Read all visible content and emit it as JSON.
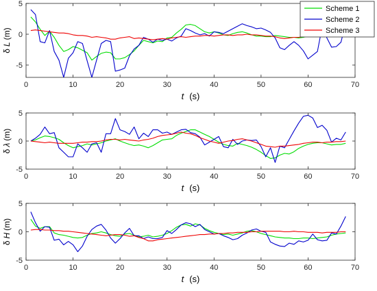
{
  "chart_data": [
    {
      "type": "line",
      "ylabel_prefix": "δ",
      "ylabel_symbol": "L",
      "ylabel_unit": "(m)",
      "xlabel_var": "t",
      "xlabel_unit": "(s)",
      "xlim": [
        0,
        70
      ],
      "ylim": [
        -7,
        5
      ],
      "xticks": [
        0,
        10,
        20,
        30,
        40,
        50,
        60,
        70
      ],
      "yticks": [
        -5,
        0,
        5
      ],
      "grid": false,
      "x": [
        1,
        2,
        3,
        4,
        5,
        6,
        7,
        8,
        9,
        10,
        11,
        12,
        13,
        14,
        15,
        16,
        17,
        18,
        19,
        20,
        21,
        22,
        23,
        24,
        25,
        26,
        27,
        28,
        29,
        30,
        31,
        32,
        33,
        34,
        35,
        36,
        37,
        38,
        39,
        40,
        41,
        42,
        43,
        44,
        45,
        46,
        47,
        48,
        49,
        50,
        51,
        52,
        53,
        54,
        55,
        56,
        57,
        58,
        59,
        60,
        61,
        62,
        63,
        64,
        65,
        66,
        67,
        68
      ],
      "series": [
        {
          "name": "Scheme 1",
          "color": "#00dd00",
          "values": [
            2.8,
            2.0,
            0.8,
            -0.2,
            0.5,
            -0.5,
            -1.8,
            -2.8,
            -2.5,
            -2.0,
            -2.2,
            -2.6,
            -3.0,
            -4.2,
            -3.6,
            -3.1,
            -2.9,
            -3.0,
            -4.0,
            -4.0,
            -3.8,
            -3.3,
            -2.7,
            -1.8,
            -1.0,
            -1.2,
            -1.4,
            -1.1,
            -1.2,
            -0.6,
            -0.5,
            0.2,
            0.8,
            1.5,
            1.6,
            1.4,
            0.9,
            0.4,
            0.2,
            0.4,
            0.2,
            -0.1,
            -0.2,
            0.1,
            0.3,
            0.4,
            0.2,
            -0.1,
            -0.3,
            -0.3,
            -0.4,
            -0.4,
            -0.2,
            -0.3,
            -0.4,
            -0.5,
            -0.5,
            -0.6,
            -0.5,
            -0.3,
            -0.2,
            -0.1,
            0.6,
            0.9,
            1.0,
            1.0,
            1.3,
            2.0
          ]
        },
        {
          "name": "Scheme 2",
          "color": "#0000cc",
          "values": [
            4.0,
            3.2,
            -1.2,
            -1.4,
            0.6,
            -2.8,
            -4.2,
            -7.0,
            -3.9,
            -3.0,
            -1.2,
            -1.5,
            -4.3,
            -7.0,
            -4.2,
            -1.5,
            -1.0,
            -1.2,
            -6.0,
            -5.8,
            -5.5,
            -3.5,
            -2.4,
            -1.8,
            -0.5,
            -0.8,
            -1.3,
            -0.8,
            -1.0,
            -0.8,
            -1.1,
            -0.6,
            -0.3,
            0.9,
            0.6,
            0.2,
            -0.1,
            0.1,
            -0.3,
            0.4,
            0.3,
            0.1,
            0.5,
            0.9,
            1.3,
            1.7,
            1.4,
            1.2,
            0.9,
            1.0,
            0.7,
            0.3,
            -0.6,
            -2.2,
            -2.5,
            -1.8,
            -1.2,
            -1.8,
            -2.7,
            -4.0,
            -3.4,
            -2.8,
            1.2,
            -0.6,
            -2.1,
            -2.0,
            -1.3,
            1.8
          ]
        },
        {
          "name": "Scheme 3",
          "color": "#ee0000",
          "values": [
            0.6,
            0.7,
            0.6,
            0.5,
            0.4,
            0.3,
            0.2,
            0.2,
            0.1,
            -0.1,
            -0.2,
            -0.2,
            -0.3,
            -0.5,
            -0.4,
            -0.5,
            -0.6,
            -0.8,
            -0.8,
            -0.6,
            -0.5,
            -0.4,
            -0.7,
            -0.6,
            -0.7,
            -0.8,
            -0.9,
            -0.8,
            -0.7,
            -0.8,
            -0.6,
            -0.5,
            -0.4,
            -0.5,
            -0.4,
            -0.3,
            -0.3,
            -0.2,
            -0.2,
            -0.3,
            -0.2,
            -0.1,
            -0.1,
            -0.2,
            -0.1,
            -0.1,
            0.0,
            -0.1,
            -0.1,
            -0.2,
            -0.3,
            -0.3,
            -0.4,
            -0.6,
            -0.7,
            -0.6,
            -0.5,
            -0.5,
            -0.4,
            -0.3,
            -0.3,
            -0.2,
            -0.3,
            -0.2,
            -0.1,
            0.0,
            0.1,
            0.2
          ]
        }
      ]
    },
    {
      "type": "line",
      "ylabel_prefix": "δ",
      "ylabel_symbol": "λ",
      "ylabel_unit": "(m)",
      "xlabel_var": "t",
      "xlabel_unit": "(s)",
      "xlim": [
        0,
        70
      ],
      "ylim": [
        -5,
        5
      ],
      "xticks": [
        0,
        10,
        20,
        30,
        40,
        50,
        60,
        70
      ],
      "yticks": [
        -5,
        0,
        5
      ],
      "grid": false,
      "x": [
        1,
        2,
        3,
        4,
        5,
        6,
        7,
        8,
        9,
        10,
        11,
        12,
        13,
        14,
        15,
        16,
        17,
        18,
        19,
        20,
        21,
        22,
        23,
        24,
        25,
        26,
        27,
        28,
        29,
        30,
        31,
        32,
        33,
        34,
        35,
        36,
        37,
        38,
        39,
        40,
        41,
        42,
        43,
        44,
        45,
        46,
        47,
        48,
        49,
        50,
        51,
        52,
        53,
        54,
        55,
        56,
        57,
        58,
        59,
        60,
        61,
        62,
        63,
        64,
        65,
        66,
        67,
        68
      ],
      "series": [
        {
          "name": "Scheme 1",
          "color": "#00dd00",
          "values": [
            0.0,
            0.2,
            0.6,
            0.9,
            0.8,
            0.6,
            0.3,
            -0.3,
            -0.8,
            -1.2,
            -1.0,
            -0.8,
            -0.5,
            -0.7,
            -0.5,
            -0.3,
            0.0,
            0.2,
            0.4,
            0.0,
            -0.3,
            -0.6,
            -0.8,
            -0.7,
            -0.9,
            -1.2,
            -0.8,
            -0.3,
            0.2,
            0.3,
            0.4,
            1.0,
            1.4,
            1.7,
            2.0,
            2.0,
            1.6,
            1.2,
            0.8,
            0.3,
            -0.2,
            -0.6,
            -0.8,
            -0.9,
            -0.4,
            -0.6,
            -0.8,
            -1.1,
            -1.5,
            -2.0,
            -2.6,
            -3.1,
            -3.0,
            -2.5,
            -2.2,
            -2.3,
            -1.9,
            -1.3,
            -0.9,
            -0.6,
            -0.4,
            -0.3,
            -0.3,
            -0.5,
            -0.7,
            -0.6,
            -0.6,
            -0.4
          ]
        },
        {
          "name": "Scheme 2",
          "color": "#0000cc",
          "values": [
            0.0,
            0.5,
            1.2,
            2.5,
            1.3,
            1.5,
            -1.2,
            -2.0,
            -2.8,
            -2.8,
            -0.5,
            -1.2,
            -2.0,
            -0.5,
            -0.3,
            -2.0,
            1.3,
            1.3,
            4.0,
            2.0,
            1.7,
            1.2,
            2.5,
            0.4,
            1.4,
            0.8,
            2.0,
            2.0,
            1.4,
            1.6,
            1.2,
            1.6,
            2.0,
            2.1,
            1.5,
            1.3,
            0.7,
            -0.7,
            -0.2,
            0.3,
            0.8,
            -1.0,
            -1.2,
            0.3,
            -0.6,
            0.0,
            0.2,
            0.1,
            0.2,
            -1.0,
            -2.8,
            -1.2,
            -3.8,
            -0.9,
            -1.2,
            0.3,
            1.8,
            3.2,
            4.4,
            4.6,
            4.1,
            2.4,
            2.8,
            1.9,
            -0.2,
            0.5,
            0.2,
            1.6
          ]
        },
        {
          "name": "Scheme 3",
          "color": "#ee0000",
          "values": [
            0.0,
            -0.1,
            -0.2,
            -0.3,
            -0.2,
            -0.3,
            -0.4,
            -0.4,
            -0.4,
            -0.4,
            -0.3,
            -0.2,
            -0.2,
            -0.1,
            -0.1,
            0.0,
            0.2,
            0.3,
            0.3,
            0.2,
            0.3,
            0.2,
            0.1,
            0.0,
            0.2,
            0.3,
            0.5,
            0.8,
            1.0,
            1.1,
            1.2,
            1.4,
            1.6,
            1.4,
            1.3,
            1.0,
            0.6,
            0.3,
            0.0,
            -0.2,
            -0.4,
            -0.2,
            0.0,
            0.1,
            0.3,
            0.4,
            0.2,
            0.0,
            -0.3,
            -0.6,
            -0.9,
            -1.0,
            -1.1,
            -0.9,
            -0.9,
            -0.8,
            -0.7,
            -0.6,
            -0.4,
            -0.3,
            -0.2,
            -0.2,
            -0.3,
            -0.2,
            -0.2,
            -0.1,
            -0.1,
            0.0
          ]
        }
      ]
    },
    {
      "type": "line",
      "ylabel_prefix": "δ",
      "ylabel_symbol": "H",
      "ylabel_unit": "(m)",
      "xlabel_var": "t",
      "xlabel_unit": "(s)",
      "xlim": [
        0,
        70
      ],
      "ylim": [
        -5,
        5
      ],
      "xticks": [
        0,
        10,
        20,
        30,
        40,
        50,
        60,
        70
      ],
      "yticks": [
        -5,
        0,
        5
      ],
      "grid": false,
      "x": [
        1,
        2,
        3,
        4,
        5,
        6,
        7,
        8,
        9,
        10,
        11,
        12,
        13,
        14,
        15,
        16,
        17,
        18,
        19,
        20,
        21,
        22,
        23,
        24,
        25,
        26,
        27,
        28,
        29,
        30,
        31,
        32,
        33,
        34,
        35,
        36,
        37,
        38,
        39,
        40,
        41,
        42,
        43,
        44,
        45,
        46,
        47,
        48,
        49,
        50,
        51,
        52,
        53,
        54,
        55,
        56,
        57,
        58,
        59,
        60,
        61,
        62,
        63,
        64,
        65,
        66,
        67,
        68
      ],
      "series": [
        {
          "name": "Scheme 1",
          "color": "#00dd00",
          "values": [
            2.2,
            1.0,
            0.6,
            0.9,
            0.9,
            -0.2,
            -0.5,
            -0.6,
            -0.8,
            -1.0,
            -1.1,
            -1.0,
            -0.6,
            -0.3,
            -0.2,
            0.0,
            -0.2,
            -0.5,
            -0.7,
            -0.8,
            -0.4,
            -0.3,
            -0.6,
            -0.9,
            -0.8,
            -0.6,
            -0.9,
            -0.8,
            -0.6,
            -0.3,
            0.2,
            0.8,
            1.2,
            1.3,
            1.0,
            1.4,
            1.2,
            0.6,
            0.2,
            -0.1,
            -0.3,
            -0.5,
            -0.4,
            -0.6,
            -0.4,
            -0.2,
            0.1,
            0.2,
            0.0,
            -0.3,
            -0.5,
            -0.7,
            -0.9,
            -1.0,
            -1.1,
            -1.1,
            -1.2,
            -1.2,
            -1.1,
            -1.1,
            -1.2,
            -1.1,
            -1.0,
            -0.9,
            -0.6,
            -0.4,
            -0.3,
            -0.2
          ]
        },
        {
          "name": "Scheme 2",
          "color": "#0000cc",
          "values": [
            3.5,
            1.6,
            0.1,
            0.9,
            0.8,
            -1.5,
            -1.3,
            -2.3,
            -1.7,
            -2.3,
            -3.5,
            -2.5,
            -0.8,
            0.4,
            1.0,
            1.3,
            0.3,
            -1.1,
            -2.0,
            -1.2,
            -0.2,
            0.6,
            -0.7,
            -0.7,
            -1.2,
            -0.9,
            -1.2,
            -1.2,
            -1.0,
            0.2,
            -0.3,
            0.4,
            1.2,
            1.6,
            1.4,
            0.9,
            1.3,
            0.4,
            0.0,
            -0.4,
            -0.3,
            -0.7,
            -1.0,
            -1.4,
            -1.2,
            -0.6,
            -0.2,
            0.3,
            0.5,
            0.1,
            -0.1,
            -1.8,
            -2.2,
            -2.5,
            -2.6,
            -2.0,
            -2.2,
            -1.6,
            -1.8,
            -1.5,
            -0.4,
            -1.4,
            -1.6,
            -1.5,
            -0.2,
            -0.4,
            1.0,
            2.7
          ]
        },
        {
          "name": "Scheme 3",
          "color": "#ee0000",
          "values": [
            0.3,
            0.4,
            0.4,
            0.3,
            0.3,
            0.2,
            0.2,
            0.1,
            0.1,
            0.0,
            -0.1,
            -0.2,
            -0.3,
            -0.4,
            -0.5,
            -0.6,
            -0.7,
            -0.6,
            -0.5,
            -0.5,
            -0.6,
            -0.8,
            -0.7,
            -1.0,
            -1.2,
            -1.6,
            -1.6,
            -1.4,
            -1.3,
            -1.2,
            -1.1,
            -1.0,
            -0.9,
            -0.8,
            -0.7,
            -0.6,
            -0.5,
            -0.5,
            -0.4,
            -0.4,
            -0.3,
            -0.3,
            -0.2,
            -0.2,
            -0.1,
            -0.1,
            -0.1,
            0.0,
            0.0,
            0.1,
            0.1,
            0.1,
            0.1,
            0.1,
            0.0,
            0.0,
            0.1,
            0.0,
            0.0,
            -0.1,
            -0.1,
            -0.1,
            -0.2,
            -0.1,
            -0.1,
            -0.1,
            0.0,
            0.0
          ]
        }
      ]
    }
  ],
  "legend": {
    "placement": "top-right",
    "entries": [
      {
        "label": "Scheme 1",
        "color": "#00dd00"
      },
      {
        "label": "Scheme 2",
        "color": "#0000cc"
      },
      {
        "label": "Scheme 3",
        "color": "#ee0000"
      }
    ]
  }
}
